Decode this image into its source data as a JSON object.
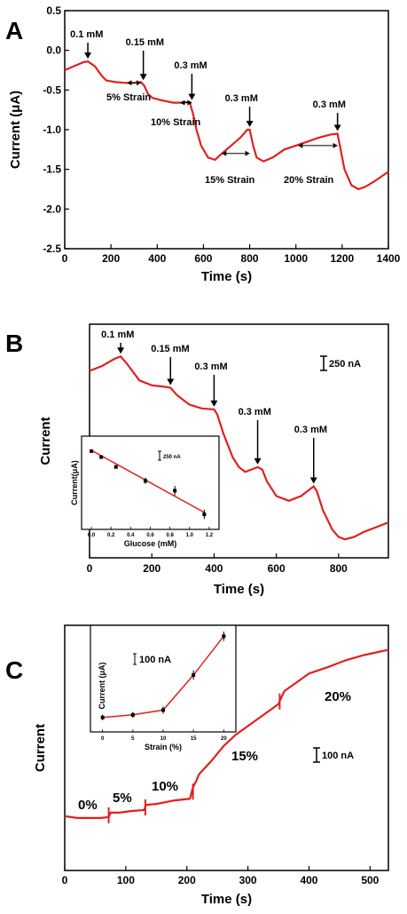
{
  "chart_data": [
    {
      "panel": "A",
      "type": "line",
      "xlabel": "Time (s)",
      "ylabel": "Current (μA)",
      "xlim": [
        0,
        1400
      ],
      "ylim": [
        -2.5,
        0.5
      ],
      "xticks": [
        0,
        200,
        400,
        600,
        800,
        1000,
        1200,
        1400
      ],
      "yticks": [
        -2.5,
        -2.0,
        -1.5,
        -1.0,
        -0.5,
        0.0,
        0.5
      ],
      "series": [
        {
          "color": "#e02020",
          "x": [
            0,
            40,
            80,
            100,
            130,
            160,
            180,
            220,
            260,
            300,
            330,
            345,
            360,
            380,
            420,
            470,
            510,
            540,
            555,
            570,
            590,
            620,
            650,
            680,
            720,
            760,
            790,
            800,
            815,
            830,
            860,
            900,
            950,
            1000,
            1050,
            1100,
            1150,
            1180,
            1190,
            1210,
            1240,
            1270,
            1300,
            1340,
            1380,
            1400
          ],
          "y": [
            -0.25,
            -0.2,
            -0.15,
            -0.14,
            -0.2,
            -0.32,
            -0.38,
            -0.4,
            -0.41,
            -0.41,
            -0.4,
            -0.45,
            -0.55,
            -0.6,
            -0.63,
            -0.66,
            -0.66,
            -0.65,
            -0.8,
            -1.0,
            -1.2,
            -1.35,
            -1.38,
            -1.3,
            -1.2,
            -1.1,
            -1.0,
            -1.0,
            -1.2,
            -1.35,
            -1.4,
            -1.35,
            -1.25,
            -1.2,
            -1.15,
            -1.1,
            -1.06,
            -1.05,
            -1.2,
            -1.5,
            -1.7,
            -1.75,
            -1.72,
            -1.65,
            -1.57,
            -1.53
          ]
        }
      ],
      "annotations": [
        {
          "label": "0.1 mM",
          "x": 100,
          "y": -0.14
        },
        {
          "label": "0.15 mM",
          "x": 340,
          "y": -0.41
        },
        {
          "label": "0.3 mM",
          "x": 550,
          "y": -0.66
        },
        {
          "label": "0.3 mM",
          "x": 800,
          "y": -1.0
        },
        {
          "label": "0.3 mM",
          "x": 1180,
          "y": -1.05
        }
      ],
      "strain_labels": [
        {
          "label": "5% Strain",
          "x0": 270,
          "x1": 330,
          "y": -0.41
        },
        {
          "label": "10% Strain",
          "x0": 500,
          "x1": 550,
          "y": -0.66
        },
        {
          "label": "15% Strain",
          "x0": 680,
          "x1": 800,
          "y": -1.3
        },
        {
          "label": "20% Strain",
          "x0": 1010,
          "x1": 1180,
          "y": -1.2
        }
      ]
    },
    {
      "panel": "B",
      "type": "line",
      "xlabel": "Time (s)",
      "ylabel": "Current",
      "xlim": [
        0,
        960
      ],
      "xticks": [
        0,
        200,
        400,
        600,
        800
      ],
      "scale_bar": "250 nA",
      "series": [
        {
          "color": "#e02020",
          "x": [
            0,
            40,
            80,
            100,
            120,
            160,
            200,
            240,
            260,
            280,
            320,
            360,
            400,
            410,
            430,
            460,
            480,
            500,
            520,
            540,
            555,
            570,
            600,
            640,
            680,
            710,
            720,
            730,
            750,
            780,
            800,
            820,
            850,
            880,
            920,
            960
          ],
          "y": [
            0,
            0.1,
            0.25,
            0.3,
            0.15,
            -0.2,
            -0.3,
            -0.33,
            -0.35,
            -0.5,
            -0.7,
            -0.78,
            -0.8,
            -0.9,
            -1.3,
            -1.8,
            -2.0,
            -2.1,
            -2.05,
            -2.0,
            -2.05,
            -2.3,
            -2.6,
            -2.7,
            -2.6,
            -2.45,
            -2.4,
            -2.5,
            -2.9,
            -3.3,
            -3.45,
            -3.5,
            -3.45,
            -3.35,
            -3.25,
            -3.15
          ]
        }
      ],
      "annotations": [
        {
          "label": "0.1 mM",
          "x": 100
        },
        {
          "label": "0.15 mM",
          "x": 260
        },
        {
          "label": "0.3 mM",
          "x": 400
        },
        {
          "label": "0.3 mM",
          "x": 540
        },
        {
          "label": "0.3 mM",
          "x": 720
        }
      ],
      "inset": {
        "type": "scatter",
        "xlabel": "Glucose (mM)",
        "ylabel": "Current(μA)",
        "scale_bar": "250 nA",
        "xlim": [
          -0.1,
          1.3
        ],
        "xticks": [
          "0.0",
          "0.2",
          "0.4",
          "0.6",
          "0.8",
          "1.0",
          "1.2"
        ],
        "x": [
          0.0,
          0.1,
          0.25,
          0.55,
          0.85,
          1.15
        ],
        "y": [
          0,
          -0.15,
          -0.4,
          -0.75,
          -1.0,
          -1.6
        ],
        "yerr": [
          0.03,
          0.03,
          0.03,
          0.08,
          0.12,
          0.12
        ],
        "fit": {
          "x": [
            0.0,
            1.15
          ],
          "y": [
            0.02,
            -1.55
          ]
        }
      }
    },
    {
      "panel": "C",
      "type": "line",
      "xlabel": "Time (s)",
      "ylabel": "Current",
      "xlim": [
        0,
        530
      ],
      "xticks": [
        0,
        100,
        200,
        300,
        400,
        500
      ],
      "scale_bar": "100 nA",
      "series": [
        {
          "color": "#e02020",
          "x": [
            0,
            20,
            40,
            60,
            72,
            75,
            90,
            110,
            130,
            133,
            150,
            180,
            205,
            210,
            215,
            220,
            240,
            260,
            280,
            300,
            320,
            340,
            350,
            355,
            360,
            380,
            400,
            430,
            460,
            490,
            530
          ],
          "y": [
            0.02,
            0.0,
            0.0,
            0.0,
            0.01,
            0.06,
            0.06,
            0.08,
            0.09,
            0.15,
            0.16,
            0.2,
            0.22,
            0.35,
            0.42,
            0.5,
            0.65,
            0.82,
            0.95,
            1.05,
            1.15,
            1.25,
            1.3,
            1.38,
            1.45,
            1.55,
            1.65,
            1.72,
            1.8,
            1.86,
            1.92
          ]
        }
      ],
      "annotations": [
        {
          "label": "0%",
          "x": 40
        },
        {
          "label": "5%",
          "x": 100
        },
        {
          "label": "10%",
          "x": 165
        },
        {
          "label": "15%",
          "x": 295
        },
        {
          "label": "20%",
          "x": 420
        }
      ],
      "inset": {
        "type": "scatter",
        "xlabel": "Strain (%)",
        "ylabel": "Current (μA)",
        "scale_bar": "100 nA",
        "xlim": [
          -2,
          22
        ],
        "xticks": [
          "0",
          "5",
          "10",
          "15",
          "20"
        ],
        "x": [
          0,
          5,
          10,
          15,
          20
        ],
        "y": [
          0.0,
          0.07,
          0.2,
          1.15,
          2.2
        ],
        "yerr": [
          0.03,
          0.03,
          0.05,
          0.08,
          0.08
        ]
      }
    }
  ]
}
